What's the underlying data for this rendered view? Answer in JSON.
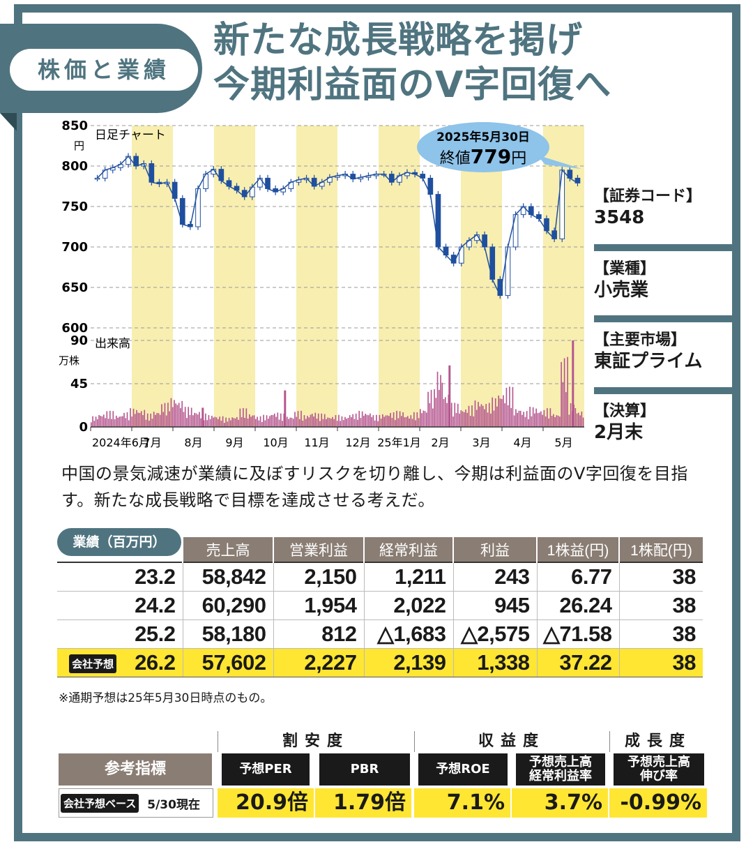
{
  "tag": "株価と業績",
  "headline": {
    "line1": "新たな成長戦略を掲げ",
    "line2": "今期利益面のV字回復へ"
  },
  "chart": {
    "price_label": "日足チャート",
    "volume_label": "出来高",
    "price_unit": "円",
    "volume_unit": "万株",
    "callout_date": "2025年5月30日",
    "callout_close_label": "終値",
    "callout_close_value": "779",
    "callout_close_unit": "円"
  },
  "side_info": [
    {
      "label": "【証券コード】",
      "value": "3548"
    },
    {
      "label": "【業種】",
      "value": "小売業"
    },
    {
      "label": "【主要市場】",
      "value": "東証プライム"
    },
    {
      "label": "【決算】",
      "value": "2月末"
    }
  ],
  "description": "中国の景気減速が業績に及ぼすリスクを切り離し、今期は利益面のV字回復を目指す。新たな成長戦略で目標を達成させる考えだ。",
  "performance": {
    "title": "業績（百万円）",
    "columns": [
      "売上高",
      "営業利益",
      "経常利益",
      "利益",
      "1株益(円)",
      "1株配(円)"
    ],
    "rows": [
      {
        "period": "23.2",
        "values": [
          "58,842",
          "2,150",
          "1,211",
          "243",
          "6.77",
          "38"
        ]
      },
      {
        "period": "24.2",
        "values": [
          "60,290",
          "1,954",
          "2,022",
          "945",
          "26.24",
          "38"
        ]
      },
      {
        "period": "25.2",
        "values": [
          "58,180",
          "812",
          "△1,683",
          "△2,575",
          "△71.58",
          "38"
        ]
      },
      {
        "period": "26.2",
        "badge": "会社予想",
        "values": [
          "57,602",
          "2,227",
          "2,139",
          "1,338",
          "37.22",
          "38"
        ]
      }
    ],
    "note": "※通期予想は25年5月30日時点のもの。"
  },
  "reference": {
    "groups": [
      "割安度",
      "収益度",
      "成長度"
    ],
    "title": "参考指標",
    "base_badge": "会社予想ベース",
    "base_date": "5/30現在",
    "headers": [
      "予想PER",
      "PBR",
      "予想ROE",
      "予想売上高\n経常利益率",
      "予想売上高\n伸び率"
    ],
    "values": [
      "20.9倍",
      "1.79倍",
      "7.1%",
      "3.7%",
      "-0.99%"
    ]
  },
  "colors": {
    "frame": "#4f7480",
    "band": "#f7eeb0",
    "candle": "#1f4f9e",
    "volume": "#b5568e",
    "forecast_row": "#ffe633",
    "callout": "#8ec3ea",
    "table_header": "#8a7d74"
  },
  "chart_data": {
    "type": "candlestick",
    "price_axis": {
      "ticks": [
        600,
        650,
        700,
        750,
        800,
        850
      ],
      "ylim": [
        600,
        850
      ]
    },
    "volume_axis": {
      "ticks": [
        0,
        45,
        90
      ],
      "ylim": [
        0,
        90
      ]
    },
    "x_labels": [
      "2024年6月",
      "7月",
      "8月",
      "9月",
      "10月",
      "11月",
      "12月",
      "25年1月",
      "2月",
      "3月",
      "4月",
      "5月"
    ],
    "months": [
      "2024-06",
      "2024-07",
      "2024-08",
      "2024-09",
      "2024-10",
      "2024-11",
      "2024-12",
      "2025-01",
      "2025-02",
      "2025-03",
      "2025-04",
      "2025-05"
    ],
    "close_by_week": [
      785,
      795,
      798,
      802,
      812,
      800,
      803,
      780,
      778,
      780,
      760,
      728,
      725,
      772,
      790,
      796,
      782,
      775,
      770,
      762,
      774,
      785,
      772,
      768,
      772,
      780,
      783,
      785,
      775,
      780,
      786,
      788,
      790,
      784,
      786,
      788,
      790,
      790,
      780,
      788,
      792,
      790,
      785,
      765,
      700,
      690,
      680,
      700,
      708,
      715,
      700,
      660,
      640,
      700,
      740,
      750,
      740,
      735,
      720,
      710,
      795,
      785,
      779
    ],
    "volume_by_week": [
      8,
      10,
      12,
      9,
      11,
      14,
      13,
      10,
      12,
      18,
      22,
      20,
      15,
      12,
      10,
      9,
      8,
      7,
      8,
      14,
      10,
      8,
      9,
      11,
      10,
      8,
      12,
      9,
      11,
      10,
      8,
      9,
      8,
      10,
      12,
      11,
      9,
      10,
      11,
      12,
      9,
      11,
      14,
      28,
      42,
      25,
      18,
      14,
      16,
      20,
      18,
      22,
      26,
      30,
      14,
      12,
      15,
      13,
      14,
      10,
      52,
      18,
      12
    ],
    "spikes": [
      {
        "month": "2024-08",
        "volume": 20
      },
      {
        "month": "2024-10",
        "volume": 38
      },
      {
        "month": "2025-02",
        "volume": 64
      },
      {
        "month": "2025-05",
        "volume": 90
      }
    ]
  }
}
